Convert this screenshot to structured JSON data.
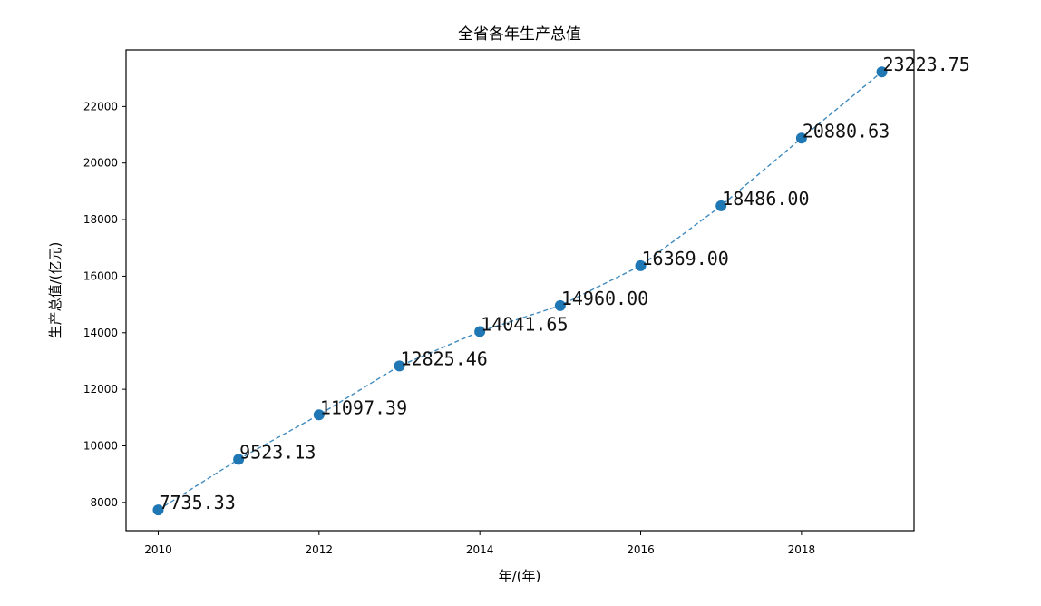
{
  "chart_data": {
    "type": "line",
    "title": "全省各年生产总值",
    "xlabel": "年/(年)",
    "ylabel": "生产总值/(亿元)",
    "x": [
      2010,
      2011,
      2012,
      2013,
      2014,
      2015,
      2016,
      2017,
      2018,
      2019
    ],
    "values": [
      7735.33,
      9523.13,
      11097.39,
      12825.46,
      14041.65,
      14960.0,
      16369.0,
      18486.0,
      20880.63,
      23223.75
    ],
    "data_labels": [
      "7735.33",
      "9523.13",
      "11097.39",
      "12825.46",
      "14041.65",
      "14960.00",
      "16369.00",
      "18486.00",
      "20880.63",
      "23223.75"
    ],
    "xlim": [
      2009.6,
      2019.4
    ],
    "ylim": [
      7000,
      24000
    ],
    "xticks": [
      2010,
      2012,
      2014,
      2016,
      2018
    ],
    "yticks": [
      8000,
      10000,
      12000,
      14000,
      16000,
      18000,
      20000,
      22000
    ],
    "xtick_labels": [
      "2010",
      "2012",
      "2014",
      "2016",
      "2018"
    ],
    "ytick_labels": [
      "8000",
      "10000",
      "12000",
      "14000",
      "16000",
      "18000",
      "20000",
      "22000"
    ],
    "line_style": "dashed",
    "marker": "circle",
    "grid": false,
    "color": "#1f77b4"
  }
}
